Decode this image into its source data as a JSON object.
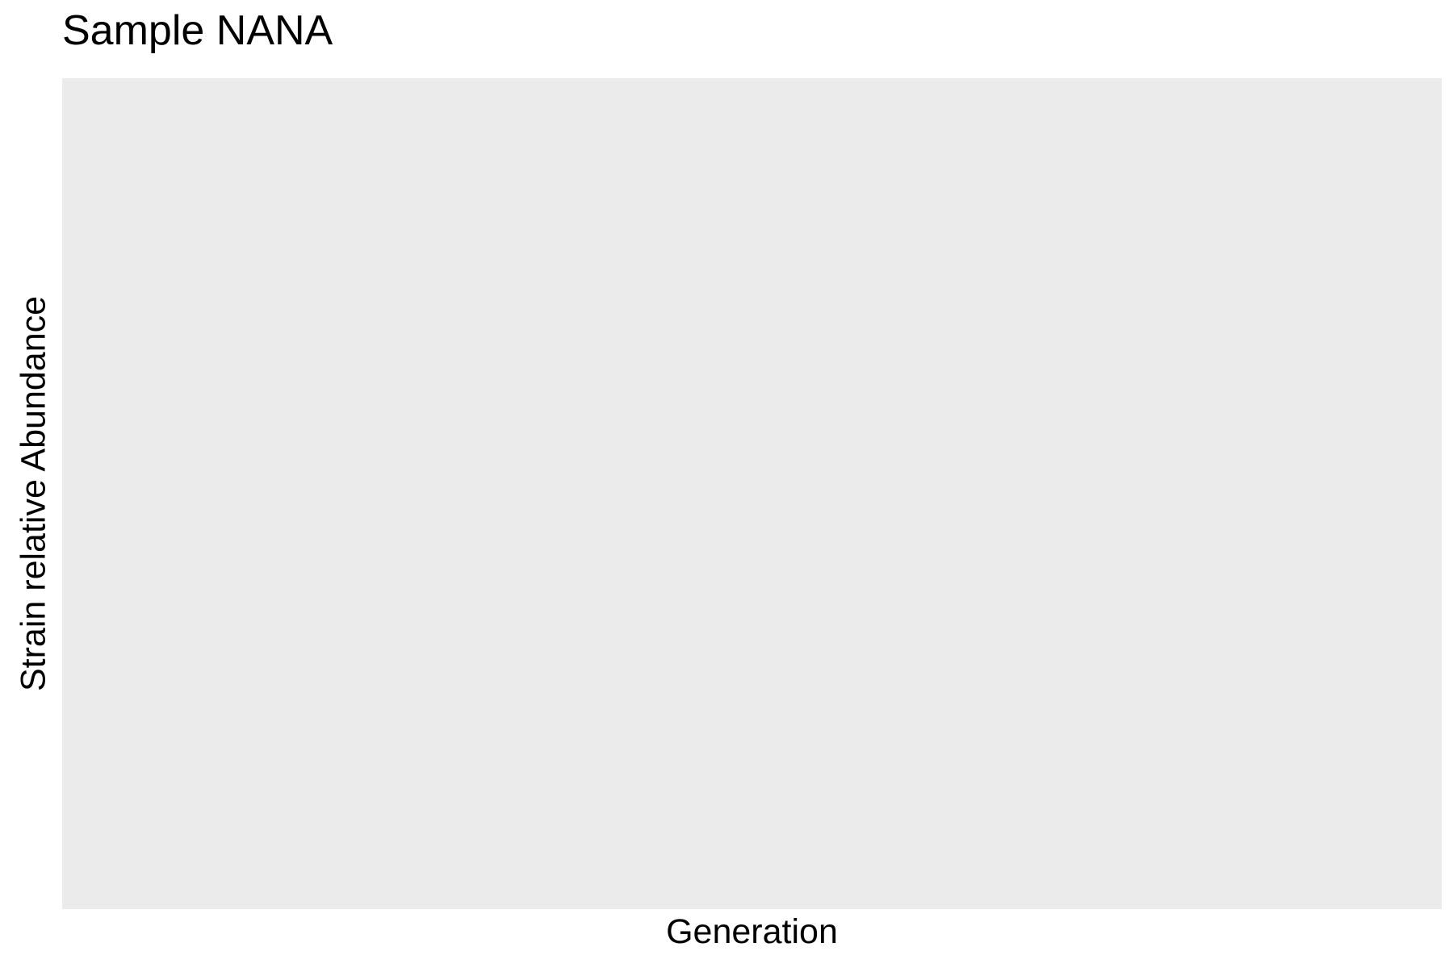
{
  "chart_data": {
    "type": "line",
    "title": "Sample NANA",
    "xlabel": "Generation",
    "ylabel": "Strain relative Abundance",
    "series": [],
    "x": [],
    "grid": false,
    "legend": "none",
    "panel_color": "#ebebeb"
  }
}
